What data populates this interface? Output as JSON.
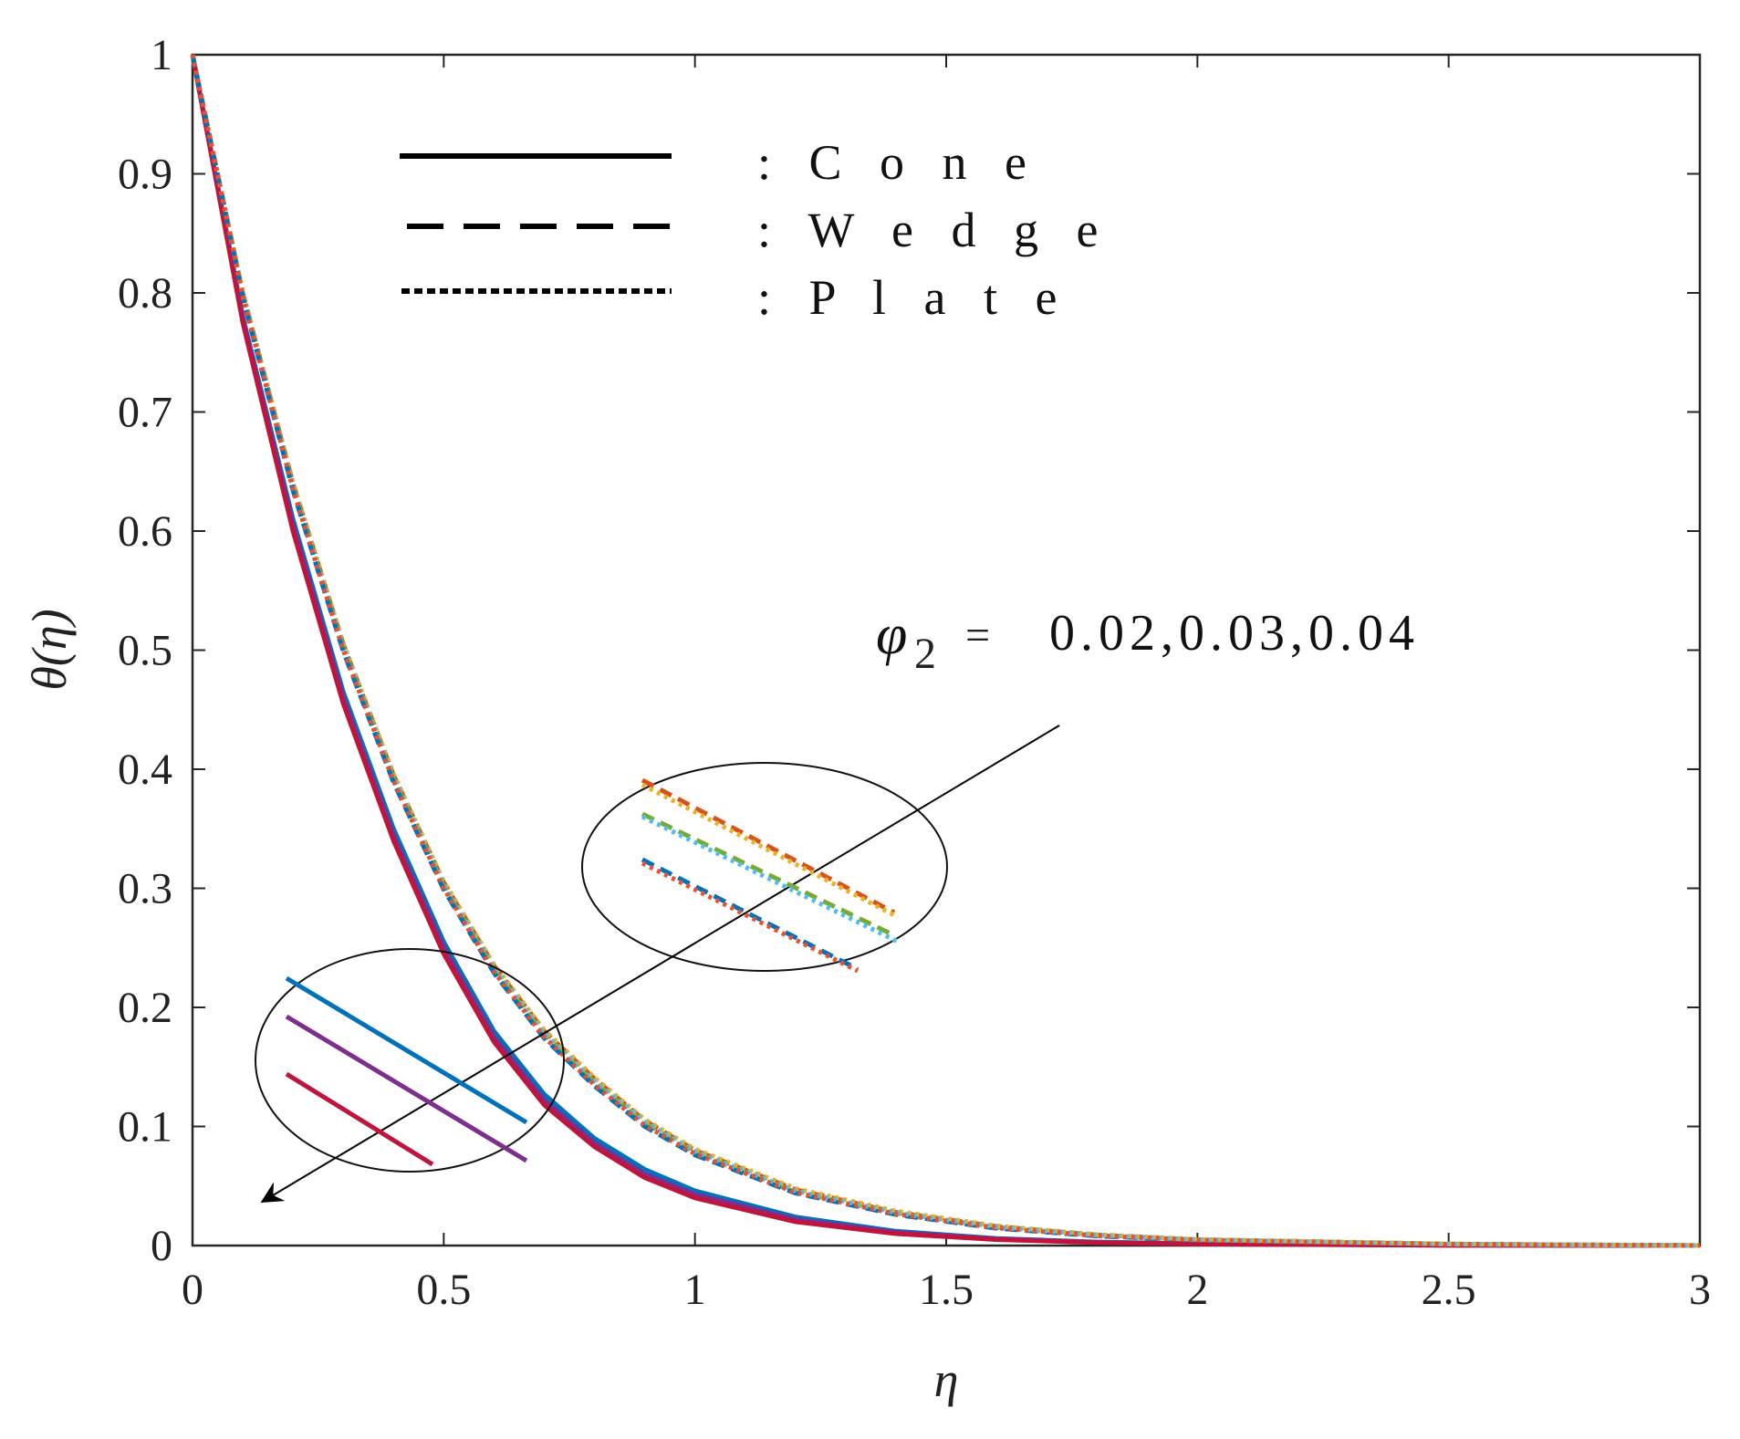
{
  "chart_data": {
    "type": "line",
    "xlabel": "η",
    "ylabel": "θ(η)",
    "xlim": [
      0,
      3
    ],
    "ylim": [
      0,
      1
    ],
    "xticks": [
      0,
      0.5,
      1,
      1.5,
      2,
      2.5,
      3
    ],
    "xtick_labels": [
      "0",
      "0.5",
      "1",
      "1.5",
      "2",
      "2.5",
      "3"
    ],
    "yticks": [
      0,
      0.1,
      0.2,
      0.3,
      0.4,
      0.5,
      0.6,
      0.7,
      0.8,
      0.9,
      1
    ],
    "ytick_labels": [
      "0",
      "0.1",
      "0.2",
      "0.3",
      "0.4",
      "0.5",
      "0.6",
      "0.7",
      "0.8",
      "0.9",
      "1"
    ],
    "grid": false,
    "legend": {
      "placement": "top-left",
      "entries": [
        {
          "style": "solid",
          "label": ": C o n e"
        },
        {
          "style": "dashed",
          "label": ": W e d g e"
        },
        {
          "style": "dotted",
          "label": ": P l a t e"
        }
      ]
    },
    "annotation": {
      "symbol": "φ",
      "subscript": "2",
      "equals": "=",
      "values_text": "0.02,0.03,0.04",
      "direction": "increasing values point down-left"
    },
    "x": [
      0,
      0.1,
      0.2,
      0.3,
      0.4,
      0.5,
      0.6,
      0.7,
      0.8,
      0.9,
      1.0,
      1.2,
      1.4,
      1.6,
      1.8,
      2.0,
      2.5,
      3.0
    ],
    "series": [
      {
        "name": "Cone φ2=0.02",
        "geometry": "cone",
        "phi2": 0.02,
        "style": "solid",
        "color": "#0072BD",
        "values": [
          1.0,
          0.78,
          0.61,
          0.465,
          0.35,
          0.255,
          0.18,
          0.127,
          0.09,
          0.064,
          0.046,
          0.024,
          0.012,
          0.006,
          0.003,
          0.0015,
          0.0003,
          0.0
        ]
      },
      {
        "name": "Cone φ2=0.03",
        "geometry": "cone",
        "phi2": 0.03,
        "style": "solid",
        "color": "#7E2F8E",
        "values": [
          1.0,
          0.778,
          0.605,
          0.46,
          0.344,
          0.25,
          0.175,
          0.122,
          0.086,
          0.06,
          0.043,
          0.022,
          0.011,
          0.0055,
          0.0027,
          0.0013,
          0.0002,
          0.0
        ]
      },
      {
        "name": "Cone φ2=0.04",
        "geometry": "cone",
        "phi2": 0.04,
        "style": "solid",
        "color": "#C0143C",
        "values": [
          1.0,
          0.775,
          0.6,
          0.455,
          0.34,
          0.245,
          0.171,
          0.118,
          0.083,
          0.057,
          0.04,
          0.02,
          0.01,
          0.005,
          0.0025,
          0.0012,
          0.0002,
          0.0
        ]
      },
      {
        "name": "Wedge φ2=0.02",
        "geometry": "wedge",
        "phi2": 0.02,
        "style": "dashed",
        "color": "#D95319",
        "values": [
          1.0,
          0.8,
          0.64,
          0.505,
          0.395,
          0.305,
          0.235,
          0.18,
          0.14,
          0.105,
          0.08,
          0.047,
          0.028,
          0.016,
          0.009,
          0.005,
          0.0013,
          0.0
        ]
      },
      {
        "name": "Wedge φ2=0.03",
        "geometry": "wedge",
        "phi2": 0.03,
        "style": "dashed",
        "color": "#77AC30",
        "values": [
          1.0,
          0.798,
          0.637,
          0.502,
          0.392,
          0.302,
          0.232,
          0.177,
          0.137,
          0.103,
          0.078,
          0.045,
          0.027,
          0.015,
          0.0085,
          0.0048,
          0.0012,
          0.0
        ]
      },
      {
        "name": "Wedge φ2=0.04",
        "geometry": "wedge",
        "phi2": 0.04,
        "style": "dashed",
        "color": "#0072BD",
        "values": [
          1.0,
          0.796,
          0.634,
          0.499,
          0.389,
          0.299,
          0.229,
          0.174,
          0.134,
          0.1,
          0.076,
          0.044,
          0.026,
          0.0145,
          0.008,
          0.0045,
          0.0011,
          0.0
        ]
      },
      {
        "name": "Plate φ2=0.02",
        "geometry": "plate",
        "phi2": 0.02,
        "style": "dotted",
        "color": "#EDB120",
        "values": [
          1.0,
          0.801,
          0.641,
          0.506,
          0.396,
          0.306,
          0.236,
          0.181,
          0.141,
          0.106,
          0.081,
          0.048,
          0.029,
          0.0165,
          0.0092,
          0.0052,
          0.0014,
          0.0
        ]
      },
      {
        "name": "Plate φ2=0.03",
        "geometry": "plate",
        "phi2": 0.03,
        "style": "dotted",
        "color": "#4DBEEE",
        "values": [
          1.0,
          0.799,
          0.638,
          0.503,
          0.393,
          0.303,
          0.233,
          0.178,
          0.138,
          0.104,
          0.079,
          0.046,
          0.0275,
          0.0155,
          0.0087,
          0.0049,
          0.0012,
          0.0
        ]
      },
      {
        "name": "Plate φ2=0.04",
        "geometry": "plate",
        "phi2": 0.04,
        "style": "dotted",
        "color": "#E8502E",
        "values": [
          1.0,
          0.797,
          0.635,
          0.5,
          0.39,
          0.3,
          0.23,
          0.175,
          0.135,
          0.101,
          0.077,
          0.0445,
          0.0265,
          0.0148,
          0.0082,
          0.0046,
          0.0011,
          0.0
        ]
      }
    ],
    "inset_segments": [
      {
        "group": "cone",
        "style": "solid",
        "color": "#0072BD"
      },
      {
        "group": "cone",
        "style": "solid",
        "color": "#7E2F8E"
      },
      {
        "group": "cone",
        "style": "solid",
        "color": "#C0143C"
      },
      {
        "group": "wedge-plate",
        "style": "dashed",
        "color": "#D95319"
      },
      {
        "group": "wedge-plate",
        "style": "dotted",
        "color": "#EDB120"
      },
      {
        "group": "wedge-plate",
        "style": "dashed",
        "color": "#77AC30"
      },
      {
        "group": "wedge-plate",
        "style": "dotted",
        "color": "#4DBEEE"
      },
      {
        "group": "wedge-plate",
        "style": "dashed",
        "color": "#0072BD"
      },
      {
        "group": "wedge-plate",
        "style": "dotted",
        "color": "#E8502E"
      }
    ]
  }
}
